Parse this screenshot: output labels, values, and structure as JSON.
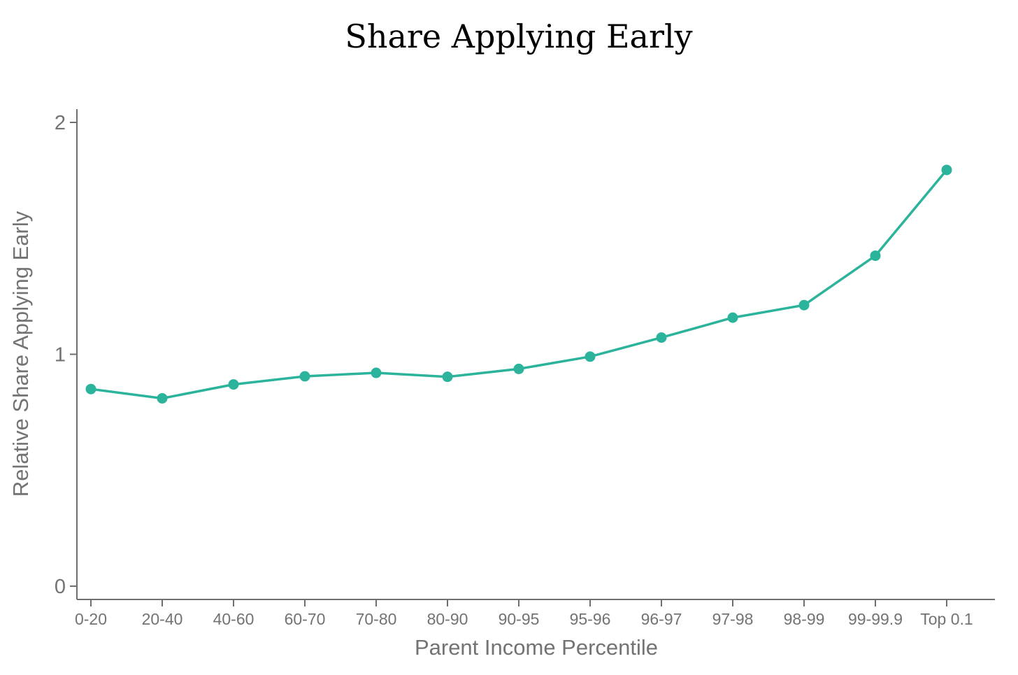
{
  "chart_data": {
    "type": "line",
    "title": "Share Applying Early",
    "xlabel": "Parent Income Percentile",
    "ylabel": "Relative Share Applying Early",
    "categories": [
      "0-20",
      "20-40",
      "40-60",
      "60-70",
      "70-80",
      "80-90",
      "90-95",
      "95-96",
      "96-97",
      "97-98",
      "98-99",
      "99-99.9",
      "Top 0.1"
    ],
    "series": [
      {
        "values": [
          0.85,
          0.81,
          0.87,
          0.905,
          0.92,
          0.903,
          0.937,
          0.99,
          1.072,
          1.158,
          1.212,
          1.425,
          1.795
        ]
      }
    ],
    "yticks": [
      0,
      1,
      2
    ],
    "ytick_labels": [
      "0",
      "1",
      "2"
    ],
    "ylim": [
      -0.05,
      2.05
    ],
    "grid": false,
    "legend": "none",
    "colors": {
      "series": "#2bb39c",
      "axis": "#6f6f6f",
      "labels": "#737373",
      "title": "#000000"
    }
  }
}
